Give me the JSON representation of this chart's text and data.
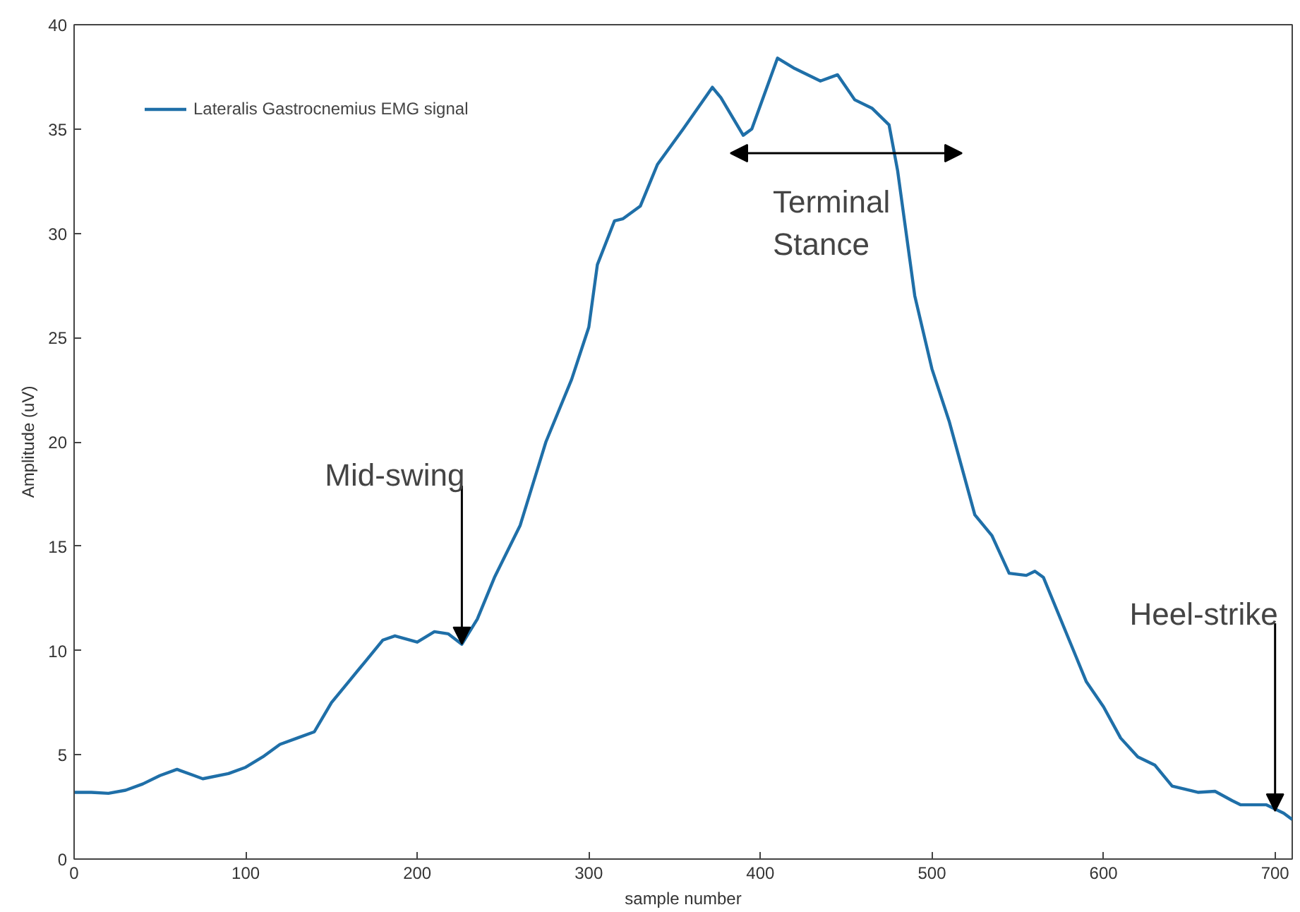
{
  "chart_data": {
    "type": "line",
    "xlabel": "sample number",
    "ylabel": "Amplitude (uV)",
    "xlim": [
      0,
      710
    ],
    "ylim": [
      0,
      40
    ],
    "xticks": [
      0,
      100,
      200,
      300,
      400,
      500,
      600,
      700
    ],
    "yticks": [
      0,
      5,
      10,
      15,
      20,
      25,
      30,
      35,
      40
    ],
    "grid": false,
    "legend": "top left",
    "marker": "none",
    "line_style": "solid",
    "series": [
      {
        "name": "Lateralis Gastrocnemius EMG signal",
        "color": "#1f6fa8",
        "x": [
          0,
          10,
          20,
          30,
          40,
          50,
          60,
          70,
          75,
          90,
          100,
          110,
          120,
          130,
          140,
          150,
          160,
          170,
          180,
          187,
          200,
          210,
          218,
          226,
          235,
          245,
          260,
          275,
          290,
          300,
          305,
          315,
          320,
          330,
          340,
          355,
          372,
          377,
          390,
          395,
          410,
          420,
          435,
          445,
          455,
          465,
          475,
          480,
          490,
          500,
          510,
          525,
          535,
          545,
          555,
          560,
          565,
          580,
          590,
          600,
          610,
          620,
          630,
          640,
          655,
          665,
          675,
          680,
          695,
          705,
          710
        ],
        "values": [
          3.2,
          3.2,
          3.15,
          3.3,
          3.6,
          4.0,
          4.3,
          4.0,
          3.85,
          4.1,
          4.4,
          4.9,
          5.5,
          5.8,
          6.1,
          7.5,
          8.5,
          9.5,
          10.5,
          10.7,
          10.4,
          10.9,
          10.8,
          10.3,
          11.5,
          13.5,
          16,
          20,
          23,
          25.5,
          28.5,
          30.6,
          30.7,
          31.3,
          33.3,
          35,
          37.0,
          36.5,
          34.7,
          35,
          38.4,
          37.9,
          37.3,
          37.6,
          36.4,
          36.0,
          35.2,
          33,
          27,
          23.5,
          21,
          16.5,
          15.5,
          13.7,
          13.6,
          13.8,
          13.5,
          10.5,
          8.5,
          7.3,
          5.8,
          4.9,
          4.5,
          3.5,
          3.2,
          3.25,
          2.8,
          2.6,
          2.6,
          2.2,
          1.9
        ]
      }
    ],
    "annotations": [
      {
        "text": "Mid-swing",
        "x": 226,
        "y": 10.3
      },
      {
        "text": "Heel-strike",
        "x": 700,
        "y": 2.3
      },
      "Terminal Stance"
    ]
  }
}
